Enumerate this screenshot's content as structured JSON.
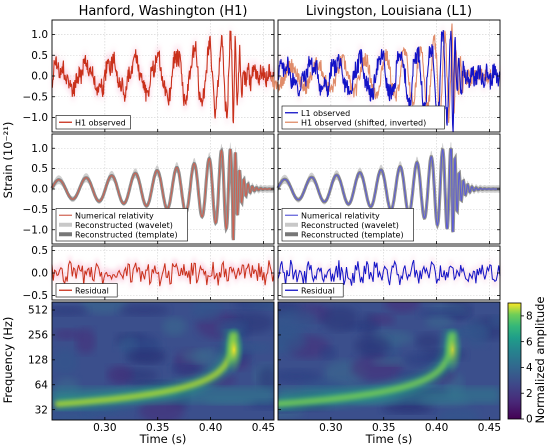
{
  "chart_data": {
    "type": "line",
    "titles": [
      "Hanford, Washington (H1)",
      "Livingston, Louisiana (L1)"
    ],
    "ylabel_strain": "Strain (10⁻²¹)",
    "ylabel_freq": "Frequency (Hz)",
    "xlabel": "Time (s)",
    "colorbar_label": "Normalized amplitude",
    "xlim": [
      0.25,
      0.46
    ],
    "x_ticks": [
      "0.30",
      "0.35",
      "0.40",
      "0.45"
    ],
    "row1": {
      "ylim": [
        -1.35,
        1.35
      ],
      "y_ticks": [
        "1.0",
        "0.5",
        "0.0",
        "−0.5",
        "−1.0"
      ]
    },
    "row2": {
      "ylim": [
        -1.35,
        1.35
      ],
      "y_ticks": [
        "1.0",
        "0.5",
        "0.0",
        "−0.5",
        "−1.0"
      ]
    },
    "row3": {
      "ylim": [
        -0.6,
        0.6
      ],
      "y_ticks": [
        "0.5",
        "0.0",
        "−0.5"
      ]
    },
    "row4": {
      "y_scale": "log2",
      "ylim": [
        24,
        640
      ],
      "y_ticks": [
        "512",
        "256",
        "128",
        "64",
        "32"
      ]
    },
    "colorbar": {
      "ticks": [
        "8",
        "6",
        "4",
        "2",
        "0"
      ],
      "range": [
        0,
        9
      ],
      "colormap": "viridis"
    },
    "colors": {
      "h1_observed": "#c9301b",
      "l1_observed": "#1313c6",
      "h1_shifted": "#e08c6a",
      "nr": "#d06050",
      "nr_l1": "#5b5bd8",
      "wavelet": "#c8c8c8",
      "template": "#777777",
      "envelope_h1": "#f7a9c8",
      "envelope_l1": "#f7c9dc"
    },
    "legends": {
      "h1_row1": [
        "H1 observed"
      ],
      "l1_row1": [
        "L1 observed",
        "H1 observed (shifted, inverted)"
      ],
      "h1_row2": [
        "Numerical relativity",
        "Reconstructed (wavelet)",
        "Reconstructed (template)"
      ],
      "l1_row2": [
        "Numerical relativity",
        "Reconstructed (wavelet)",
        "Reconstructed (template)"
      ],
      "h1_row3": [
        "Residual"
      ],
      "l1_row3": [
        "Residual"
      ]
    },
    "chirp": {
      "comment_free_params": true,
      "merger_time": 0.423,
      "merger_time_l1": 0.416,
      "peak_amplitude": 1.0,
      "f_start_hz": 35,
      "f_end_hz": 250
    }
  }
}
